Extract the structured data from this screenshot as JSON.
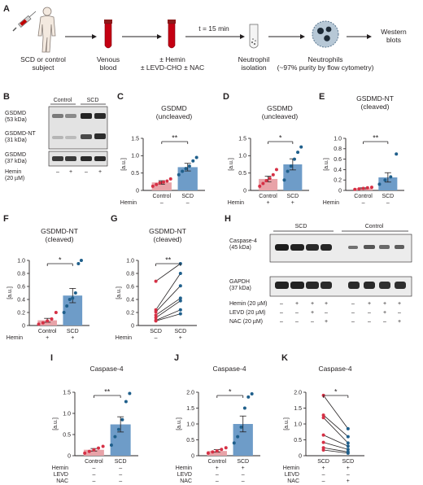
{
  "colors": {
    "scd": "#6e9cc8",
    "scd_dot": "#1f5f8b",
    "ctrl": "#e8a3a8",
    "ctrl_dot": "#d63045",
    "axis": "#231f20",
    "pair_line": "#231f20"
  },
  "panel_labels": {
    "A": "A",
    "B": "B",
    "C": "C",
    "D": "D",
    "E": "E",
    "F": "F",
    "G": "G",
    "H": "H",
    "I": "I",
    "J": "J",
    "K": "K"
  },
  "schematic": {
    "subject": "SCD or control\nsubject",
    "blood": "Venous\nblood",
    "treat": "± Hemin\n± LEVD-CHO ± NAC",
    "time": "t = 15 min",
    "isolation": "Neutrophil\nisolation",
    "neutrophils": "Neutrophils\n(~97% purity by flow cytometry)",
    "western": "Western\nblots",
    "icons": [
      "person-icon",
      "syringe-icon",
      "blood-tube-icon",
      "blood-tube-icon",
      "neutrophil-tube-icon",
      "neutrophil-cell-icon"
    ]
  },
  "blot_B": {
    "groups": [
      "Control",
      "SCD"
    ],
    "rows": [
      "GSDMD\n(53 kDa)",
      "GSDMD-NT\n(31 kDa)",
      "GSDMD\n(37 kDa)"
    ],
    "hemin_label": "Hemin\n(20 µM)",
    "hemin": [
      "–",
      "+",
      "–",
      "+"
    ]
  },
  "blot_H": {
    "groups": [
      "SCD",
      "Control"
    ],
    "rows": [
      "Caspase-4\n(45 kDa)",
      "GAPDH\n(37 kDa)"
    ],
    "treatments": [
      {
        "label": "Hemin (20 µM)",
        "values": [
          "–",
          "+",
          "+",
          "+",
          "–",
          "+",
          "+",
          "+"
        ]
      },
      {
        "label": "LEVD (20 µM)",
        "values": [
          "–",
          "–",
          "+",
          "–",
          "–",
          "–",
          "+",
          "–"
        ]
      },
      {
        "label": "NAC (20 µM)",
        "values": [
          "–",
          "–",
          "–",
          "+",
          "–",
          "–",
          "–",
          "+"
        ]
      }
    ]
  },
  "chart_data": [
    {
      "panel": "C",
      "type": "bar",
      "title": "GSDMD\n(uncleaved)",
      "ylabel": "[a.u.]",
      "ylim": [
        0,
        1.5
      ],
      "yticks": [
        "0",
        "0.5",
        "1.0",
        "1.5"
      ],
      "categories": [
        "Control",
        "SCD"
      ],
      "values": [
        0.23,
        0.67
      ],
      "sem": [
        0.05,
        0.11
      ],
      "points": [
        [
          0.12,
          0.17,
          0.22,
          0.24,
          0.27,
          0.33
        ],
        [
          0.45,
          0.55,
          0.63,
          0.7,
          0.85,
          0.95
        ]
      ],
      "significance": "**",
      "rows": [
        {
          "label": "Hemin",
          "values": [
            "–",
            "–"
          ]
        }
      ]
    },
    {
      "panel": "D",
      "type": "bar",
      "title": "GSDMD\n(uncleaved)",
      "ylabel": "[a.u.]",
      "ylim": [
        0,
        1.5
      ],
      "yticks": [
        "0",
        "0.5",
        "1.0",
        "1.5"
      ],
      "categories": [
        "Control",
        "SCD"
      ],
      "values": [
        0.33,
        0.75
      ],
      "sem": [
        0.08,
        0.16
      ],
      "points": [
        [
          0.12,
          0.2,
          0.28,
          0.35,
          0.45,
          0.6
        ],
        [
          0.3,
          0.55,
          0.7,
          0.9,
          1.1,
          1.25
        ]
      ],
      "significance": "*",
      "rows": [
        {
          "label": "Hemin",
          "values": [
            "+",
            "+"
          ]
        }
      ]
    },
    {
      "panel": "E",
      "type": "bar",
      "title": "GSDMD-NT\n(cleaved)",
      "ylabel": "[a.u.]",
      "ylim": [
        0,
        1.0
      ],
      "yticks": [
        "0",
        "0.2",
        "0.4",
        "0.6",
        "0.8",
        "1.0"
      ],
      "categories": [
        "Control",
        "SCD"
      ],
      "values": [
        0.04,
        0.25
      ],
      "sem": [
        0.01,
        0.09
      ],
      "points": [
        [
          0.02,
          0.03,
          0.04,
          0.05,
          0.06
        ],
        [
          0.12,
          0.2,
          0.26,
          0.7
        ]
      ],
      "significance": "**",
      "rows": [
        {
          "label": "Hemin",
          "values": [
            "–",
            "–"
          ]
        }
      ]
    },
    {
      "panel": "F",
      "type": "bar",
      "title": "GSDMD-NT\n(cleaved)",
      "ylabel": "[a.u.]",
      "ylim": [
        0,
        1.0
      ],
      "yticks": [
        "0",
        "0.2",
        "0.4",
        "0.6",
        "0.8",
        "1.0"
      ],
      "categories": [
        "Control",
        "SCD"
      ],
      "values": [
        0.08,
        0.46
      ],
      "sem": [
        0.03,
        0.11
      ],
      "points": [
        [
          0.02,
          0.04,
          0.07,
          0.1,
          0.2
        ],
        [
          0.2,
          0.3,
          0.4,
          0.42,
          0.5,
          0.95,
          1.0
        ]
      ],
      "significance": "*",
      "rows": [
        {
          "label": "Hemin",
          "values": [
            "+",
            "+"
          ]
        }
      ]
    },
    {
      "panel": "G",
      "type": "line",
      "title": "GSDMD-NT\n(cleaved)",
      "ylabel": "[a.u.]",
      "ylim": [
        0,
        1.0
      ],
      "yticks": [
        "0",
        "0.2",
        "0.4",
        "0.6",
        "0.8",
        "1.0"
      ],
      "categories": [
        "SCD",
        "SCD"
      ],
      "pairs": [
        [
          0.68,
          0.95
        ],
        [
          0.24,
          0.8
        ],
        [
          0.21,
          0.61
        ],
        [
          0.16,
          0.42
        ],
        [
          0.12,
          0.38
        ],
        [
          0.08,
          0.24
        ],
        [
          0.07,
          0.18
        ]
      ],
      "significance": "**",
      "rows": [
        {
          "label": "Hemin",
          "values": [
            "–",
            "+"
          ]
        }
      ]
    },
    {
      "panel": "I",
      "type": "bar",
      "title": "Caspase-4",
      "ylabel": "[a.u.]",
      "ylim": [
        0,
        1.5
      ],
      "yticks": [
        "0",
        "0.5",
        "1.0",
        "1.5"
      ],
      "categories": [
        "Control",
        "SCD"
      ],
      "values": [
        0.14,
        0.74
      ],
      "sem": [
        0.03,
        0.18
      ],
      "points": [
        [
          0.06,
          0.1,
          0.14,
          0.18,
          0.22
        ],
        [
          0.25,
          0.45,
          0.62,
          0.85,
          1.28,
          1.47
        ]
      ],
      "significance": "**",
      "rows": [
        {
          "label": "Hemin",
          "values": [
            "–",
            "–"
          ]
        },
        {
          "label": "LEVD",
          "values": [
            "–",
            "–"
          ]
        },
        {
          "label": "NAC",
          "values": [
            "–",
            "–"
          ]
        }
      ]
    },
    {
      "panel": "J",
      "type": "bar",
      "title": "Caspase-4",
      "ylabel": "[a.u.]",
      "ylim": [
        0,
        2.0
      ],
      "yticks": [
        "0",
        "0.5",
        "1.0",
        "1.5",
        "2.0"
      ],
      "categories": [
        "Control",
        "SCD"
      ],
      "values": [
        0.15,
        1.0
      ],
      "sem": [
        0.04,
        0.25
      ],
      "points": [
        [
          0.08,
          0.12,
          0.15,
          0.2,
          0.25
        ],
        [
          0.4,
          0.6,
          0.9,
          1.5,
          1.85,
          1.95
        ]
      ],
      "significance": "*",
      "rows": [
        {
          "label": "Hemin",
          "values": [
            "+",
            "+"
          ]
        },
        {
          "label": "LEVD",
          "values": [
            "–",
            "–"
          ]
        },
        {
          "label": "NAC",
          "values": [
            "–",
            "–"
          ]
        }
      ]
    },
    {
      "panel": "K",
      "type": "line",
      "title": "Caspase-4",
      "ylabel": "[a.u.]",
      "ylim": [
        0,
        2.0
      ],
      "yticks": [
        "0",
        "0.5",
        "1.0",
        "1.5",
        "2.0"
      ],
      "categories": [
        "SCD",
        "SCD"
      ],
      "pairs": [
        [
          1.9,
          0.85
        ],
        [
          1.28,
          0.6
        ],
        [
          1.2,
          0.4
        ],
        [
          0.65,
          0.3
        ],
        [
          0.42,
          0.2
        ],
        [
          0.25,
          0.12
        ],
        [
          0.18,
          0.08
        ]
      ],
      "significance": "*",
      "rows": [
        {
          "label": "Hemin",
          "values": [
            "+",
            "+"
          ]
        },
        {
          "label": "LEVD",
          "values": [
            "–",
            "–"
          ]
        },
        {
          "label": "NAC",
          "values": [
            "–",
            "+"
          ]
        }
      ]
    }
  ]
}
